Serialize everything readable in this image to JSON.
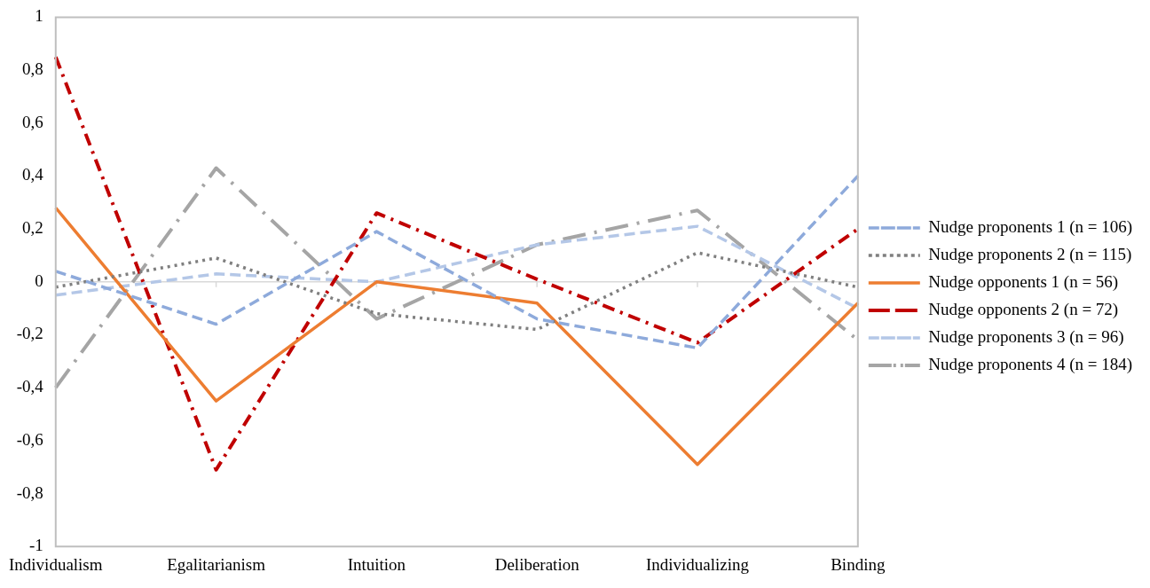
{
  "chart_data": {
    "type": "line",
    "categories": [
      "Individualism",
      "Egalitarianism",
      "Intuition",
      "Deliberation",
      "Individualizing",
      "Binding"
    ],
    "ylim": [
      -1,
      1
    ],
    "yticks": [
      {
        "value": -1,
        "label": "-1"
      },
      {
        "value": -0.8,
        "label": "-0,8"
      },
      {
        "value": -0.6,
        "label": "-0,6"
      },
      {
        "value": -0.4,
        "label": "-0,4"
      },
      {
        "value": -0.2,
        "label": "-0,2"
      },
      {
        "value": 0,
        "label": "0"
      },
      {
        "value": 0.2,
        "label": "0,2"
      },
      {
        "value": 0.4,
        "label": "0,4"
      },
      {
        "value": 0.6,
        "label": "0,6"
      },
      {
        "value": 0.8,
        "label": "0,8"
      },
      {
        "value": 1,
        "label": "1"
      }
    ],
    "grid": false,
    "legend": "right",
    "marker": "none",
    "ref_lines": [
      {
        "axis": "y",
        "value": 0,
        "color": "#d9d9d9"
      }
    ],
    "series": [
      {
        "name": "Nudge proponents 1 (n = 106)",
        "color": "#8eaadb",
        "line_style": "dashed",
        "values": [
          0.04,
          -0.16,
          0.19,
          -0.14,
          -0.25,
          0.4
        ]
      },
      {
        "name": "Nudge proponents 2 (n = 115)",
        "color": "#7f7f7f",
        "line_style": "dotted",
        "values": [
          -0.02,
          0.09,
          -0.12,
          -0.18,
          0.11,
          -0.02
        ]
      },
      {
        "name": "Nudge opponents 1 (n = 56)",
        "color": "#ed7d31",
        "line_style": "solid",
        "values": [
          0.28,
          -0.45,
          0,
          -0.08,
          -0.69,
          -0.08
        ]
      },
      {
        "name": "Nudge opponents 2 (n = 72)",
        "color": "#c00000",
        "line_style": "dashdot",
        "values": [
          0.85,
          -0.71,
          0.26,
          0.01,
          -0.23,
          0.2
        ]
      },
      {
        "name": "Nudge proponents 3 (n = 96)",
        "color": "#b4c7e7",
        "line_style": "dashed",
        "values": [
          -0.05,
          0.03,
          0,
          0.14,
          0.21,
          -0.1
        ]
      },
      {
        "name": "Nudge proponents 4 (n = 184)",
        "color": "#a5a5a5",
        "line_style": "longdashdot",
        "values": [
          -0.4,
          0.43,
          -0.14,
          0.14,
          0.27,
          -0.22
        ]
      }
    ]
  }
}
